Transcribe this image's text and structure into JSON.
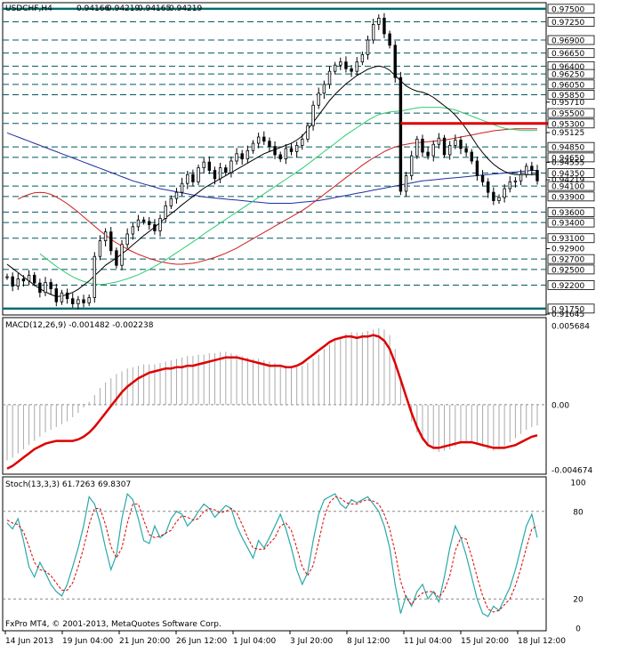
{
  "header": {
    "symbol_tf": "USDCHF,H4",
    "open": "0.94166",
    "high": "0.94219",
    "low": "0.94165",
    "close": "0.94219"
  },
  "copyright": "FxPro MT4, © 2001-2013, MetaQuotes Software Corp.",
  "colors": {
    "price_line_dashed": "#00585f",
    "price_line_solid": "#006b6f",
    "resistance": "#e00000",
    "ma_black": "#000000",
    "ma_green": "#2ecc71",
    "ma_red": "#cc1f1f",
    "ma_blue": "#1f2f9f",
    "macd_signal": "#dd0000",
    "macd_hist": "#aaaaaa",
    "stoch_main": "#2aa8a8",
    "stoch_signal": "#dd0000"
  },
  "x_axis": {
    "labels": [
      "14 Jun 2013",
      "19 Jun 04:00",
      "21 Jun 20:00",
      "26 Jun 12:00",
      "1 Jul 04:00",
      "3 Jul 20:00",
      "8 Jul 12:00",
      "11 Jul 04:00",
      "15 Jul 20:00",
      "18 Jul 12:00"
    ]
  },
  "chart_data": [
    {
      "type": "candlestick",
      "ylim": [
        0.91645,
        0.976
      ],
      "price_levels": [
        {
          "label": "0.97500",
          "value": 0.975,
          "style": "solid"
        },
        {
          "label": "0.97250",
          "value": 0.9725,
          "style": "dashed"
        },
        {
          "label": "0.96900",
          "value": 0.969,
          "style": "dashed"
        },
        {
          "label": "0.96650",
          "value": 0.9665,
          "style": "dashed"
        },
        {
          "label": "0.96400",
          "value": 0.964,
          "style": "dashed"
        },
        {
          "label": "0.96250",
          "value": 0.9625,
          "style": "dashed"
        },
        {
          "label": "0.96050",
          "value": 0.9605,
          "style": "dashed"
        },
        {
          "label": "0.95850",
          "value": 0.9585,
          "style": "dashed"
        },
        {
          "label": "0.95500",
          "value": 0.955,
          "style": "dashed"
        },
        {
          "label": "0.95300",
          "value": 0.953,
          "style": "dashed"
        },
        {
          "label": "0.94850",
          "value": 0.9485,
          "style": "dashed"
        },
        {
          "label": "0.94650",
          "value": 0.9465,
          "style": "dashed"
        },
        {
          "label": "0.94350",
          "value": 0.9435,
          "style": "dashed"
        },
        {
          "label": "0.94100",
          "value": 0.941,
          "style": "dashed"
        },
        {
          "label": "0.93900",
          "value": 0.939,
          "style": "dashed"
        },
        {
          "label": "0.93600",
          "value": 0.936,
          "style": "dashed"
        },
        {
          "label": "0.93400",
          "value": 0.934,
          "style": "dashed"
        },
        {
          "label": "0.93100",
          "value": 0.931,
          "style": "dashed"
        },
        {
          "label": "0.92700",
          "value": 0.927,
          "style": "dashed"
        },
        {
          "label": "0.92500",
          "value": 0.925,
          "style": "dashed"
        },
        {
          "label": "0.92200",
          "value": 0.922,
          "style": "dashed"
        },
        {
          "label": "0.91750",
          "value": 0.9175,
          "style": "solid"
        }
      ],
      "minor_labels": [
        {
          "label": "0.95710",
          "value": 0.9571
        },
        {
          "label": "0.95125",
          "value": 0.95125
        },
        {
          "label": "0.94555",
          "value": 0.94555
        },
        {
          "label": "0.94219",
          "value": 0.94219
        },
        {
          "label": "0.92900",
          "value": 0.929
        },
        {
          "label": "0.91645",
          "value": 0.91645
        }
      ],
      "resistance": {
        "value": 0.953,
        "from_index": 72,
        "to_index": 98
      },
      "closes": [
        0.9236,
        0.9218,
        0.9232,
        0.9228,
        0.9239,
        0.9224,
        0.9206,
        0.9225,
        0.9213,
        0.9188,
        0.9205,
        0.9194,
        0.9184,
        0.9192,
        0.9186,
        0.9196,
        0.9275,
        0.9305,
        0.9322,
        0.9286,
        0.9258,
        0.9298,
        0.9318,
        0.9332,
        0.9345,
        0.9342,
        0.9336,
        0.9324,
        0.9348,
        0.9372,
        0.9386,
        0.9398,
        0.9415,
        0.9432,
        0.9418,
        0.9445,
        0.9456,
        0.944,
        0.9424,
        0.9445,
        0.9436,
        0.9458,
        0.9472,
        0.9462,
        0.9478,
        0.9492,
        0.9504,
        0.9496,
        0.9486,
        0.947,
        0.9462,
        0.9482,
        0.9476,
        0.9488,
        0.95,
        0.9526,
        0.9565,
        0.9588,
        0.9605,
        0.963,
        0.9642,
        0.9648,
        0.9635,
        0.963,
        0.9648,
        0.9662,
        0.969,
        0.972,
        0.9732,
        0.9702,
        0.968,
        0.9618,
        0.94,
        0.943,
        0.9468,
        0.95,
        0.9475,
        0.9468,
        0.949,
        0.9502,
        0.947,
        0.9488,
        0.9498,
        0.9482,
        0.9475,
        0.9458,
        0.943,
        0.9418,
        0.9398,
        0.9382,
        0.9388,
        0.9405,
        0.9418,
        0.942,
        0.9432,
        0.9448,
        0.944,
        0.942
      ],
      "ma_black": [
        0.926,
        0.9252,
        0.9244,
        0.9236,
        0.9228,
        0.922,
        0.9213,
        0.9207,
        0.9202,
        0.9198,
        0.9199,
        0.9202,
        0.9206,
        0.9212,
        0.922,
        0.9228,
        0.9238,
        0.9248,
        0.9258,
        0.9265,
        0.9272,
        0.928,
        0.9288,
        0.9297,
        0.9306,
        0.9315,
        0.9323,
        0.9331,
        0.934,
        0.9349,
        0.9357,
        0.9365,
        0.9374,
        0.9382,
        0.939,
        0.9398,
        0.9406,
        0.9412,
        0.9418,
        0.9424,
        0.943,
        0.9436,
        0.9442,
        0.9448,
        0.9454,
        0.946,
        0.9466,
        0.9472,
        0.9476,
        0.948,
        0.9484,
        0.9488,
        0.9492,
        0.9498,
        0.9506,
        0.9518,
        0.9532,
        0.9546,
        0.956,
        0.9574,
        0.9586,
        0.9596,
        0.9606,
        0.9614,
        0.9622,
        0.9628,
        0.9634,
        0.9638,
        0.964,
        0.9638,
        0.9632,
        0.9622,
        0.9612,
        0.9602,
        0.9596,
        0.9592,
        0.959,
        0.9586,
        0.958,
        0.9572,
        0.9564,
        0.9556,
        0.9546,
        0.9534,
        0.952,
        0.9504,
        0.9488,
        0.9474,
        0.9462,
        0.9452,
        0.9444,
        0.9438,
        0.9434,
        0.9432,
        0.9432,
        0.9432,
        0.9432,
        0.9432
      ],
      "ma_green": [
        null,
        null,
        null,
        null,
        null,
        null,
        0.928,
        0.9272,
        0.9264,
        0.9256,
        0.9249,
        0.9242,
        0.9236,
        0.9231,
        0.9227,
        0.9224,
        0.9222,
        0.9221,
        0.9222,
        0.9224,
        0.9226,
        0.9229,
        0.9232,
        0.9236,
        0.924,
        0.9245,
        0.925,
        0.9256,
        0.9262,
        0.9268,
        0.9275,
        0.9282,
        0.9289,
        0.9296,
        0.9303,
        0.931,
        0.9318,
        0.9325,
        0.9332,
        0.9339,
        0.9346,
        0.9353,
        0.936,
        0.9367,
        0.9374,
        0.9381,
        0.9388,
        0.9395,
        0.9402,
        0.9409,
        0.9416,
        0.9423,
        0.943,
        0.9437,
        0.9444,
        0.9452,
        0.946,
        0.9468,
        0.9476,
        0.9484,
        0.9492,
        0.95,
        0.9508,
        0.9515,
        0.9522,
        0.9529,
        0.9536,
        0.9542,
        0.9547,
        0.955,
        0.9552,
        0.9553,
        0.9554,
        0.9556,
        0.9558,
        0.956,
        0.9561,
        0.9561,
        0.9561,
        0.9561,
        0.956,
        0.9558,
        0.9556,
        0.9552,
        0.9548,
        0.9544,
        0.954,
        0.9536,
        0.9532,
        0.9528,
        0.9524,
        0.9521,
        0.9519,
        0.9518,
        0.9517,
        0.9517,
        0.9517,
        0.9517
      ],
      "ma_red": [
        null,
        null,
        0.9385,
        0.939,
        0.9394,
        0.9397,
        0.9398,
        0.9397,
        0.9394,
        0.9389,
        0.9383,
        0.9376,
        0.9368,
        0.936,
        0.9351,
        0.9342,
        0.9333,
        0.9324,
        0.9316,
        0.9308,
        0.9301,
        0.9295,
        0.9289,
        0.9284,
        0.9279,
        0.9275,
        0.9271,
        0.9268,
        0.9265,
        0.9263,
        0.9261,
        0.926,
        0.926,
        0.9261,
        0.9262,
        0.9264,
        0.9267,
        0.927,
        0.9273,
        0.9277,
        0.9281,
        0.9286,
        0.9291,
        0.9297,
        0.9303,
        0.9309,
        0.9315,
        0.9321,
        0.9327,
        0.9333,
        0.9339,
        0.9345,
        0.9351,
        0.9357,
        0.9363,
        0.937,
        0.9378,
        0.9386,
        0.9394,
        0.9402,
        0.941,
        0.9418,
        0.9426,
        0.9434,
        0.9442,
        0.945,
        0.9457,
        0.9464,
        0.947,
        0.9476,
        0.9481,
        0.9485,
        0.9488,
        0.949,
        0.9492,
        0.9493,
        0.9494,
        0.9495,
        0.9496,
        0.9497,
        0.9498,
        0.95,
        0.9502,
        0.9504,
        0.9506,
        0.9508,
        0.951,
        0.9512,
        0.9514,
        0.9516,
        0.9517,
        0.9518,
        0.9519,
        0.952,
        0.952,
        0.952,
        0.952,
        0.952
      ],
      "ma_blue": [
        0.9512,
        0.9508,
        0.9504,
        0.95,
        0.9496,
        0.9492,
        0.9488,
        0.9484,
        0.948,
        0.9476,
        0.9472,
        0.9468,
        0.9464,
        0.946,
        0.9456,
        0.9452,
        0.9448,
        0.9444,
        0.944,
        0.9436,
        0.9432,
        0.9428,
        0.9424,
        0.942,
        0.9417,
        0.9414,
        0.9411,
        0.9408,
        0.9405,
        0.9403,
        0.9401,
        0.9399,
        0.9397,
        0.9395,
        0.9393,
        0.9391,
        0.9389,
        0.9388,
        0.9387,
        0.9386,
        0.9385,
        0.9384,
        0.9383,
        0.9382,
        0.9381,
        0.938,
        0.9379,
        0.9378,
        0.9377,
        0.9377,
        0.9377,
        0.9377,
        0.9377,
        0.9378,
        0.9379,
        0.938,
        0.9381,
        0.9382,
        0.9384,
        0.9386,
        0.9388,
        0.939,
        0.9392,
        0.9394,
        0.9396,
        0.9398,
        0.94,
        0.9402,
        0.9404,
        0.9406,
        0.9408,
        0.941,
        0.9412,
        0.9414,
        0.9416,
        0.9418,
        0.942,
        0.9421,
        0.9422,
        0.9423,
        0.9424,
        0.9425,
        0.9426,
        0.9427,
        0.9428,
        0.9429,
        0.943,
        0.9431,
        0.9432,
        0.9433,
        0.9434,
        0.9435,
        0.9436,
        0.9437,
        0.9438,
        0.9439,
        0.944,
        0.944
      ]
    },
    {
      "type": "macd",
      "title": "MACD(12,26,9) -0.001482 -0.002238",
      "ylim": [
        -0.004674,
        0.005684
      ],
      "tick_labels": [
        {
          "label": "0.005684",
          "value": 0.005684
        },
        {
          "label": "0.00",
          "value": 0.0
        },
        {
          "label": "-0.004674",
          "value": -0.004674
        }
      ],
      "histogram": [
        -0.004,
        -0.0038,
        -0.0035,
        -0.0032,
        -0.0029,
        -0.0026,
        -0.0023,
        -0.002,
        -0.0018,
        -0.0016,
        -0.0014,
        -0.0012,
        -0.0009,
        -0.0006,
        -0.0002,
        0.0002,
        0.0007,
        0.0012,
        0.0016,
        0.0019,
        0.0022,
        0.0024,
        0.0026,
        0.0027,
        0.0028,
        0.0029,
        0.0029,
        0.0029,
        0.003,
        0.0031,
        0.0032,
        0.0033,
        0.0034,
        0.0035,
        0.0035,
        0.0036,
        0.0036,
        0.0037,
        0.0037,
        0.0038,
        0.0038,
        0.0037,
        0.0036,
        0.0035,
        0.0034,
        0.0033,
        0.0033,
        0.0032,
        0.0031,
        0.003,
        0.0029,
        0.0028,
        0.0027,
        0.0027,
        0.0028,
        0.003,
        0.0033,
        0.0036,
        0.004,
        0.0043,
        0.0046,
        0.0049,
        0.0051,
        0.0052,
        0.0052,
        0.0052,
        0.0053,
        0.0054,
        0.0055,
        0.0054,
        0.005,
        0.004,
        0.002,
        0.0,
        -0.0012,
        -0.002,
        -0.0026,
        -0.003,
        -0.0032,
        -0.0034,
        -0.0033,
        -0.0032,
        -0.003,
        -0.0028,
        -0.0027,
        -0.0027,
        -0.0028,
        -0.003,
        -0.0032,
        -0.0033,
        -0.0032,
        -0.003,
        -0.0027,
        -0.0024,
        -0.0021,
        -0.0018,
        -0.0016,
        -0.0015
      ],
      "signal": [
        -0.0046,
        -0.0044,
        -0.0041,
        -0.0038,
        -0.0035,
        -0.0032,
        -0.003,
        -0.0028,
        -0.0027,
        -0.0026,
        -0.0026,
        -0.0026,
        -0.0026,
        -0.0025,
        -0.0023,
        -0.002,
        -0.0016,
        -0.0011,
        -0.0006,
        -0.0001,
        0.0004,
        0.0009,
        0.0013,
        0.0016,
        0.0019,
        0.0021,
        0.0023,
        0.0024,
        0.0025,
        0.0026,
        0.0026,
        0.0027,
        0.0027,
        0.0028,
        0.0028,
        0.0029,
        0.003,
        0.0031,
        0.0032,
        0.0033,
        0.0034,
        0.0034,
        0.0034,
        0.0033,
        0.0032,
        0.0031,
        0.003,
        0.0029,
        0.0028,
        0.0028,
        0.0028,
        0.0027,
        0.0027,
        0.0028,
        0.003,
        0.0033,
        0.0036,
        0.0039,
        0.0042,
        0.0045,
        0.0047,
        0.0048,
        0.0049,
        0.0049,
        0.0048,
        0.0049,
        0.0049,
        0.005,
        0.0049,
        0.0046,
        0.004,
        0.003,
        0.0018,
        0.0006,
        -0.0006,
        -0.0016,
        -0.0024,
        -0.0029,
        -0.0031,
        -0.0031,
        -0.003,
        -0.0029,
        -0.0028,
        -0.0027,
        -0.0027,
        -0.0027,
        -0.0028,
        -0.0029,
        -0.003,
        -0.0031,
        -0.0031,
        -0.0031,
        -0.003,
        -0.0029,
        -0.0027,
        -0.0025,
        -0.0023,
        -0.0022
      ]
    },
    {
      "type": "stochastic",
      "title": "Stoch(13,3,3) 61.7263 69.8307",
      "ylim": [
        0,
        100
      ],
      "levels": [
        {
          "label": "100",
          "value": 100
        },
        {
          "label": "80",
          "value": 80
        },
        {
          "label": "20",
          "value": 20
        },
        {
          "label": "0",
          "value": 0
        }
      ],
      "main": [
        72,
        68,
        75,
        60,
        42,
        35,
        45,
        38,
        30,
        25,
        22,
        30,
        42,
        55,
        70,
        90,
        85,
        72,
        55,
        40,
        50,
        75,
        92,
        88,
        75,
        60,
        58,
        70,
        62,
        65,
        75,
        80,
        78,
        70,
        74,
        80,
        85,
        82,
        76,
        80,
        84,
        82,
        70,
        62,
        55,
        48,
        60,
        55,
        62,
        70,
        78,
        68,
        55,
        40,
        30,
        38,
        60,
        78,
        88,
        90,
        92,
        85,
        82,
        88,
        86,
        88,
        90,
        85,
        80,
        70,
        55,
        30,
        10,
        22,
        15,
        25,
        30,
        20,
        25,
        18,
        35,
        55,
        70,
        62,
        50,
        35,
        20,
        10,
        8,
        15,
        12,
        20,
        28,
        40,
        55,
        70,
        78,
        62
      ],
      "signal": [
        74,
        72,
        71,
        66,
        56,
        45,
        40,
        39,
        36,
        31,
        26,
        26,
        31,
        42,
        55,
        71,
        82,
        82,
        71,
        56,
        48,
        55,
        72,
        85,
        85,
        74,
        64,
        62,
        63,
        65,
        67,
        73,
        77,
        76,
        74,
        75,
        80,
        82,
        81,
        79,
        80,
        82,
        79,
        71,
        62,
        55,
        54,
        54,
        58,
        62,
        70,
        72,
        67,
        55,
        42,
        36,
        43,
        59,
        76,
        86,
        90,
        89,
        86,
        85,
        85,
        87,
        88,
        87,
        85,
        78,
        68,
        52,
        32,
        21,
        16,
        21,
        24,
        25,
        25,
        21,
        26,
        36,
        53,
        62,
        61,
        49,
        35,
        22,
        13,
        11,
        12,
        16,
        20,
        29,
        41,
        55,
        68,
        70
      ]
    }
  ]
}
